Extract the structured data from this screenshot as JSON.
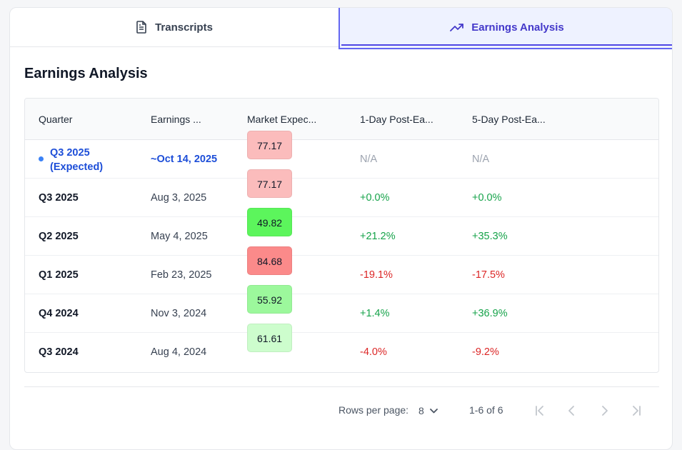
{
  "tabs": [
    {
      "label": "Transcripts",
      "icon": "document-icon",
      "active": false
    },
    {
      "label": "Earnings Analysis",
      "icon": "trending-up-icon",
      "active": true
    }
  ],
  "section_title": "Earnings Analysis",
  "table": {
    "headers": [
      "Quarter",
      "Earnings ...",
      "Market Expec...",
      "1-Day Post-Ea...",
      "5-Day Post-Ea..."
    ],
    "rows": [
      {
        "quarter": "Q3 2025",
        "quarter_note": "(Expected)",
        "date": "~Oct 14, 2025",
        "expectation": "77.17",
        "expectation_color": "#fbbcbc",
        "day1": "N/A",
        "day5": "N/A",
        "expected": true,
        "day1_kind": "na",
        "day5_kind": "na"
      },
      {
        "quarter": "Q3 2025",
        "date": "Aug 3, 2025",
        "expectation": "77.17",
        "expectation_color": "#fbbcbc",
        "day1": "+0.0%",
        "day5": "+0.0%",
        "day1_kind": "pos",
        "day5_kind": "pos"
      },
      {
        "quarter": "Q2 2025",
        "date": "May 4, 2025",
        "expectation": "49.82",
        "expectation_color": "#5cf55c",
        "day1": "+21.2%",
        "day5": "+35.3%",
        "day1_kind": "pos",
        "day5_kind": "pos"
      },
      {
        "quarter": "Q1 2025",
        "date": "Feb 23, 2025",
        "expectation": "84.68",
        "expectation_color": "#fb8a8a",
        "day1": "-19.1%",
        "day5": "-17.5%",
        "day1_kind": "neg",
        "day5_kind": "neg"
      },
      {
        "quarter": "Q4 2024",
        "date": "Nov 3, 2024",
        "expectation": "55.92",
        "expectation_color": "#9cf89c",
        "day1": "+1.4%",
        "day5": "+36.9%",
        "day1_kind": "pos",
        "day5_kind": "pos"
      },
      {
        "quarter": "Q3 2024",
        "date": "Aug 4, 2024",
        "expectation": "61.61",
        "expectation_color": "#cdfdcd",
        "day1": "-4.0%",
        "day5": "-9.2%",
        "day1_kind": "neg",
        "day5_kind": "neg"
      }
    ]
  },
  "pagination": {
    "rows_per_page_label": "Rows per page:",
    "rows_per_page_value": "8",
    "range": "1-6 of 6",
    "buttons": [
      "first-page-icon",
      "prev-page-icon",
      "next-page-icon",
      "last-page-icon"
    ]
  }
}
